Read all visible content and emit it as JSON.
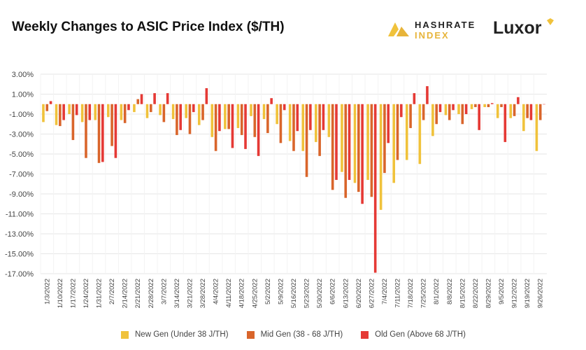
{
  "header": {
    "title": "Weekly Changes to ASIC Price Index ($/TH)",
    "brand_hashrate_line1": "HASHRATE",
    "brand_hashrate_line2": "INDEX",
    "brand_luxor": "Luxor"
  },
  "colors": {
    "new": "#f0c23b",
    "mid": "#d9652b",
    "old": "#e53935",
    "grid": "#e6e6e6",
    "brand_gold": "#e7b43a"
  },
  "chart_data": {
    "type": "bar",
    "title": "Weekly Changes to ASIC Price Index ($/TH)",
    "xlabel": "",
    "ylabel": "",
    "ylim": [
      -17,
      3
    ],
    "yticks": [
      "3.00%",
      "1.00%",
      "-1.00%",
      "-3.00%",
      "-5.00%",
      "-7.00%",
      "-9.00%",
      "-11.00%",
      "-13.00%",
      "-15.00%",
      "-17.00%"
    ],
    "ytick_values": [
      3,
      1,
      -1,
      -3,
      -5,
      -7,
      -9,
      -11,
      -13,
      -15,
      -17
    ],
    "grid": true,
    "legend_position": "bottom",
    "categories": [
      "1/3/2022",
      "1/10/2022",
      "1/17/2022",
      "1/24/2022",
      "1/31/2022",
      "2/7/2022",
      "2/14/2022",
      "2/21/2022",
      "2/28/2022",
      "3/7/2022",
      "3/14/2022",
      "3/21/2022",
      "3/28/2022",
      "4/4/2022",
      "4/11/2022",
      "4/18/2022",
      "4/25/2022",
      "5/2/2022",
      "5/9/2022",
      "5/16/2022",
      "5/23/2022",
      "5/30/2022",
      "6/6/2022",
      "6/13/2022",
      "6/20/2022",
      "6/27/2022",
      "7/4/2022",
      "7/11/2022",
      "7/18/2022",
      "7/25/2022",
      "8/1/2022",
      "8/8/2022",
      "8/15/2022",
      "8/22/2022",
      "8/29/2022",
      "9/5/2022",
      "9/12/2022",
      "9/19/2022",
      "9/26/2022"
    ],
    "series": [
      {
        "name": "New Gen (Under 38 J/TH)",
        "color": "#f0c23b",
        "values": [
          -1.8,
          -2.1,
          -1.0,
          -1.8,
          -1.6,
          -1.3,
          -1.6,
          -0.8,
          -1.4,
          -1.1,
          -1.5,
          -1.4,
          -2.1,
          -3.3,
          -2.5,
          -2.4,
          -1.2,
          -1.5,
          -2.0,
          -3.7,
          -4.7,
          -3.8,
          -3.3,
          -6.8,
          -7.9,
          -7.6,
          -10.6,
          -7.9,
          -5.6,
          -6.0,
          -3.2,
          -1.1,
          -1.0,
          -0.5,
          -0.3,
          -1.4,
          -1.4,
          -2.7,
          -4.7
        ]
      },
      {
        "name": "Mid Gen (38 - 68 J/TH)",
        "color": "#d9652b",
        "values": [
          -0.7,
          -2.2,
          -3.6,
          -5.4,
          -5.9,
          -4.2,
          -1.9,
          0.5,
          -0.8,
          -1.8,
          -3.1,
          -3.0,
          -1.6,
          -4.7,
          -2.5,
          -3.1,
          -3.3,
          -2.9,
          -3.9,
          -4.7,
          -7.3,
          -5.2,
          -8.6,
          -9.4,
          -8.8,
          -9.3,
          -6.9,
          -5.6,
          -2.4,
          -1.6,
          -2.0,
          -1.6,
          -2.0,
          -0.3,
          -0.3,
          -0.3,
          -1.2,
          -1.4,
          -1.6
        ]
      },
      {
        "name": "Old Gen (Above 68 J/TH)",
        "color": "#e53935",
        "values": [
          0.3,
          -1.6,
          -1.1,
          -1.6,
          -5.8,
          -5.4,
          -0.6,
          1.0,
          1.1,
          1.1,
          -2.6,
          -0.8,
          1.6,
          -2.7,
          -4.4,
          -4.5,
          -5.2,
          0.6,
          -0.6,
          -2.7,
          -2.6,
          -2.6,
          -7.6,
          -7.6,
          -10.0,
          -16.9,
          -3.9,
          -1.3,
          1.1,
          1.8,
          -0.8,
          -0.6,
          -1.0,
          -2.6,
          0.1,
          -3.8,
          0.7,
          -1.6,
          0.0
        ]
      }
    ]
  }
}
